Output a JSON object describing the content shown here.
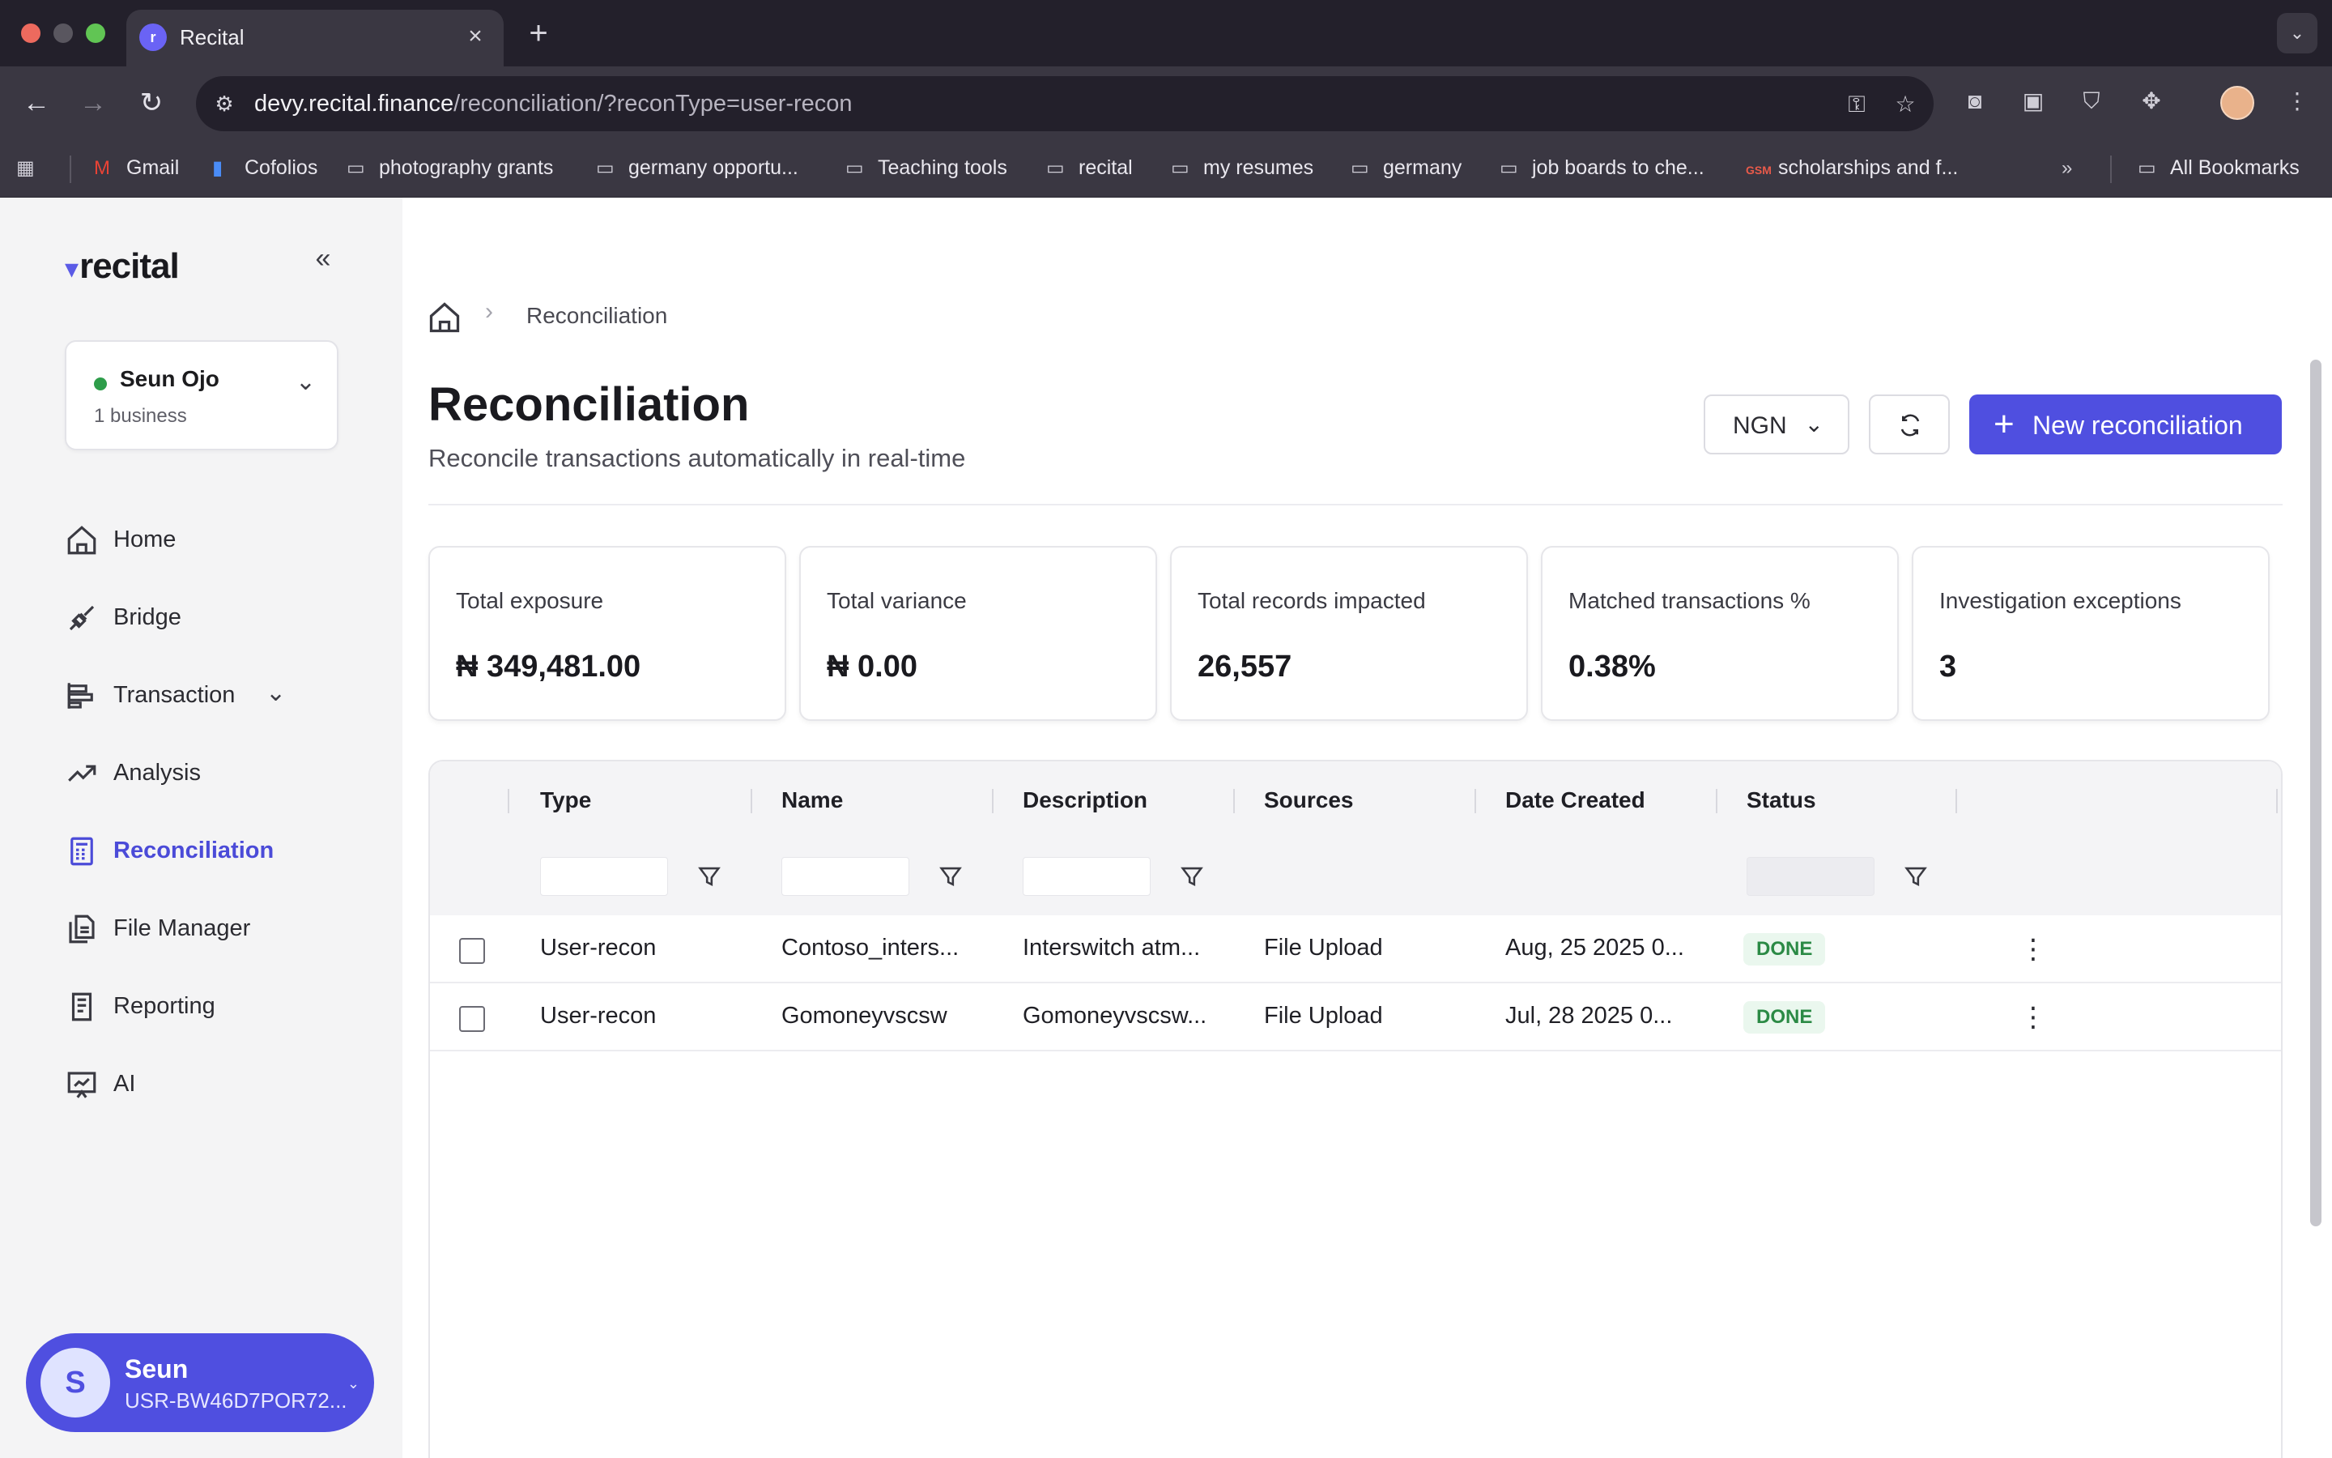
{
  "browser": {
    "tab_title": "Recital",
    "url_host": "devy.recital.finance",
    "url_path": "/reconciliation/?reconType=user-recon",
    "bookmarks": [
      {
        "label": "Gmail",
        "icon": "gmail-icon"
      },
      {
        "label": "Cofolios",
        "icon": "doc-icon"
      },
      {
        "label": "photography grants",
        "icon": "folder-icon"
      },
      {
        "label": "germany opportu...",
        "icon": "folder-icon"
      },
      {
        "label": "Teaching tools",
        "icon": "folder-icon"
      },
      {
        "label": "recital",
        "icon": "folder-icon"
      },
      {
        "label": "my resumes",
        "icon": "folder-icon"
      },
      {
        "label": "germany",
        "icon": "folder-icon"
      },
      {
        "label": "job boards to che...",
        "icon": "folder-icon"
      },
      {
        "label": "scholarships and f...",
        "icon": "gsm-icon"
      }
    ],
    "all_bookmarks": "All Bookmarks"
  },
  "sidebar": {
    "brand": "recital",
    "business": {
      "name": "Seun Ojo",
      "subtitle": "1 business"
    },
    "items": [
      {
        "label": "Home",
        "icon": "home-icon"
      },
      {
        "label": "Bridge",
        "icon": "plug-icon"
      },
      {
        "label": "Transaction",
        "icon": "transaction-icon"
      },
      {
        "label": "Analysis",
        "icon": "trend-icon"
      },
      {
        "label": "Reconciliation",
        "icon": "calculator-icon",
        "active": true
      },
      {
        "label": "File Manager",
        "icon": "files-icon"
      },
      {
        "label": "Reporting",
        "icon": "report-icon"
      },
      {
        "label": "AI",
        "icon": "ai-icon"
      }
    ],
    "user": {
      "initial": "S",
      "name": "Seun",
      "id": "USR-BW46D7POR72..."
    }
  },
  "breadcrumb": {
    "current": "Reconciliation"
  },
  "header": {
    "title": "Reconciliation",
    "subtitle": "Reconcile transactions automatically in real-time",
    "currency": "NGN",
    "new_button": "New reconciliation"
  },
  "stats": [
    {
      "label": "Total exposure",
      "value": "₦ 349,481.00"
    },
    {
      "label": "Total variance",
      "value": "₦ 0.00"
    },
    {
      "label": "Total records impacted",
      "value": "26,557"
    },
    {
      "label": "Matched transactions %",
      "value": "0.38%"
    },
    {
      "label": "Investigation exceptions",
      "value": "3"
    }
  ],
  "table": {
    "columns": [
      "Type",
      "Name",
      "Description",
      "Sources",
      "Date Created",
      "Status"
    ],
    "rows": [
      {
        "type": "User-recon",
        "name": "Contoso_inters...",
        "description": "Interswitch atm...",
        "sources": "File Upload",
        "date": "Aug, 25 2025 0...",
        "status": "DONE"
      },
      {
        "type": "User-recon",
        "name": "Gomoneyvscsw",
        "description": "Gomoneyvscsw...",
        "sources": "File Upload",
        "date": "Jul, 28 2025 0...",
        "status": "DONE"
      }
    ]
  },
  "colors": {
    "accent": "#4f4fe0",
    "status_done_bg": "#eaf7ee",
    "status_done_text": "#2b8a45"
  }
}
